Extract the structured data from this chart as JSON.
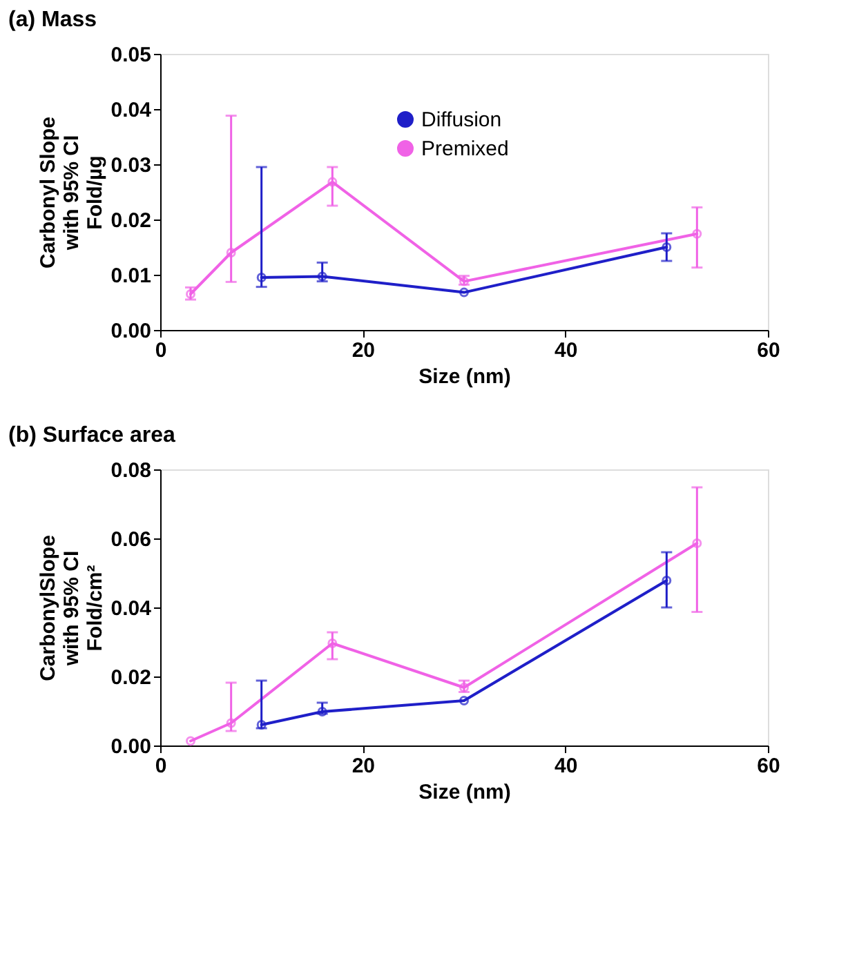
{
  "chart_data": [
    {
      "type": "line",
      "title": "(a) Mass",
      "xlabel": "Size (nm)",
      "ylabel": "Carbonyl Slope\nwith 95% CI\nFold/µg",
      "xlim": [
        0,
        60
      ],
      "xticks": [
        0,
        20,
        40,
        60
      ],
      "ylim": [
        0,
        0.05
      ],
      "yticks": [
        {
          "value": 0,
          "label": "0.00"
        },
        0.01,
        0.02,
        0.03,
        0.04,
        0.05
      ],
      "legend": "top",
      "marker": "circle",
      "grid": false,
      "series": [
        {
          "name": "Diffusion",
          "color": "#1f1fc8",
          "x": [
            10,
            16,
            30,
            50
          ],
          "values": [
            0.0095,
            0.0097,
            0.0068,
            0.015
          ],
          "errors": [
            [
              0.0078,
              0.0295
            ],
            [
              0.0088,
              0.0122
            ],
            null,
            [
              0.0125,
              0.0175
            ]
          ]
        },
        {
          "name": "Premixed",
          "color": "#f062e6",
          "x": [
            3,
            7,
            17,
            30,
            53
          ],
          "values": [
            0.0065,
            0.014,
            0.0268,
            0.0088,
            0.0174
          ],
          "errors": [
            [
              0.0055,
              0.0077
            ],
            [
              0.0087,
              0.0388
            ],
            [
              0.0225,
              0.0295
            ],
            [
              0.0082,
              0.0098
            ],
            [
              0.0113,
              0.0222
            ]
          ]
        }
      ]
    },
    {
      "type": "line",
      "title": "(b) Surface area",
      "xlabel": "Size (nm)",
      "ylabel": "CarbonylSlope\nwith 95% CI\nFold/cm²",
      "xlim": [
        0,
        60
      ],
      "xticks": [
        0,
        20,
        40,
        60
      ],
      "ylim": [
        0,
        0.08
      ],
      "yticks": [
        {
          "value": 0,
          "label": "0.00"
        },
        0.02,
        0.04,
        0.06,
        0.08
      ],
      "legend": "top",
      "marker": "circle",
      "grid": false,
      "series": [
        {
          "name": "Diffusion",
          "color": "#1f1fc8",
          "x": [
            10,
            16,
            30,
            50
          ],
          "values": [
            0.006,
            0.0098,
            0.013,
            0.0478
          ],
          "errors": [
            [
              0.005,
              0.0188
            ],
            [
              0.0092,
              0.0124
            ],
            null,
            [
              0.04,
              0.056
            ]
          ]
        },
        {
          "name": "Premixed",
          "color": "#f062e6",
          "x": [
            3,
            7,
            17,
            30,
            53
          ],
          "values": [
            0.0013,
            0.0065,
            0.0296,
            0.0168,
            0.0586
          ],
          "errors": [
            null,
            [
              0.0042,
              0.0182
            ],
            [
              0.025,
              0.0328
            ],
            [
              0.0155,
              0.0188
            ],
            [
              0.0387,
              0.0748
            ]
          ]
        }
      ]
    }
  ]
}
